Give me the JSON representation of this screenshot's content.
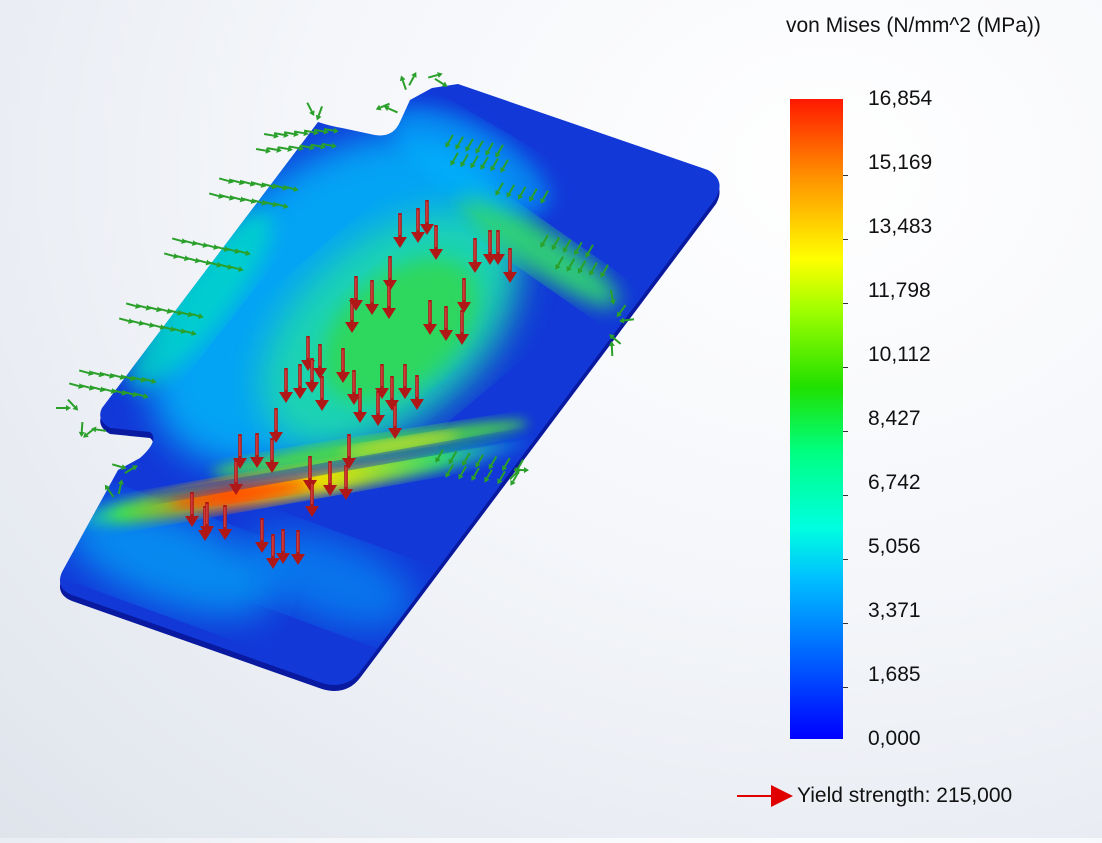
{
  "legend": {
    "title": "von Mises (N/mm^2 (MPa))",
    "ticks": [
      "16,854",
      "15,169",
      "13,483",
      "11,798",
      "10,112",
      "8,427",
      "6,742",
      "5,056",
      "3,371",
      "1,685",
      "0,000"
    ],
    "colors": [
      "#ff1800",
      "#ff9000",
      "#ffff00",
      "#a0ff00",
      "#20e000",
      "#00ff80",
      "#00ffe0",
      "#00bfff",
      "#0060ff",
      "#0000ff"
    ]
  },
  "yield": {
    "label": "Yield strength: 215,000",
    "arrow_color": "#e00000"
  },
  "model": {
    "icon_load": "red-load-arrow-icon",
    "icon_fixture": "green-fixture-arrow-icon",
    "load_color": "#b01818",
    "fixture_color": "#2aa02a"
  }
}
